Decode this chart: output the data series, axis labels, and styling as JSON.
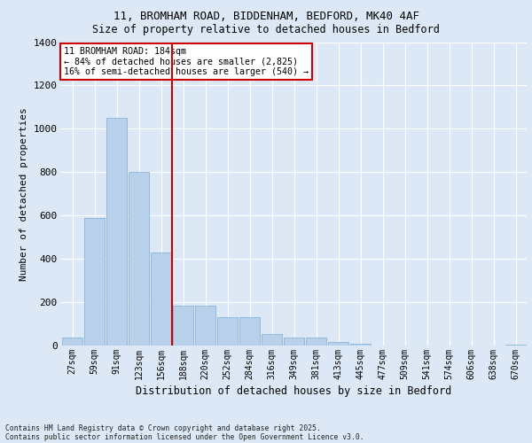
{
  "title_line1": "11, BROMHAM ROAD, BIDDENHAM, BEDFORD, MK40 4AF",
  "title_line2": "Size of property relative to detached houses in Bedford",
  "xlabel": "Distribution of detached houses by size in Bedford",
  "ylabel": "Number of detached properties",
  "categories": [
    "27sqm",
    "59sqm",
    "91sqm",
    "123sqm",
    "156sqm",
    "188sqm",
    "220sqm",
    "252sqm",
    "284sqm",
    "316sqm",
    "349sqm",
    "381sqm",
    "413sqm",
    "445sqm",
    "477sqm",
    "509sqm",
    "541sqm",
    "574sqm",
    "606sqm",
    "638sqm",
    "670sqm"
  ],
  "values": [
    35,
    590,
    1050,
    800,
    430,
    185,
    185,
    130,
    130,
    55,
    35,
    35,
    15,
    8,
    0,
    0,
    0,
    0,
    0,
    0,
    5
  ],
  "bar_color": "#b8d0ea",
  "bar_edge_color": "#7aadd4",
  "vline_index": 4.5,
  "vline_color": "#cc0000",
  "annotation_title": "11 BROMHAM ROAD: 184sqm",
  "annotation_line1": "← 84% of detached houses are smaller (2,825)",
  "annotation_line2": "16% of semi-detached houses are larger (540) →",
  "annotation_box_facecolor": "#ffffff",
  "annotation_box_edgecolor": "#cc0000",
  "ylim": [
    0,
    1400
  ],
  "yticks": [
    0,
    200,
    400,
    600,
    800,
    1000,
    1200,
    1400
  ],
  "background_color": "#dce8f5",
  "grid_color": "#ffffff",
  "footer_line1": "Contains HM Land Registry data © Crown copyright and database right 2025.",
  "footer_line2": "Contains public sector information licensed under the Open Government Licence v3.0."
}
